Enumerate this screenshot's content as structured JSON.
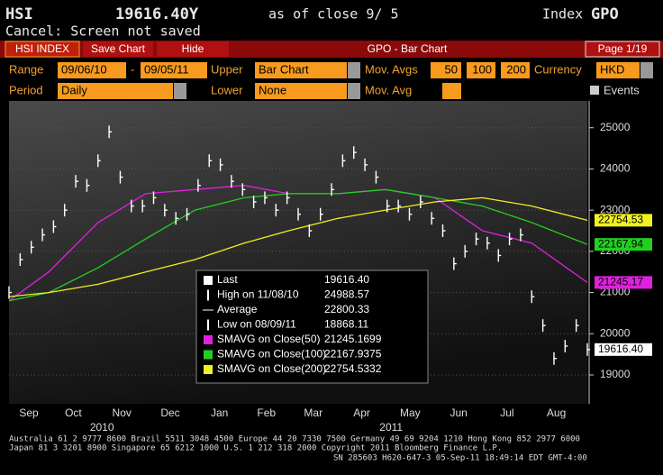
{
  "header": {
    "ticker": "HSI",
    "price": "19616.40Y",
    "as_of": "as of close  9/ 5",
    "index": "Index",
    "code": "GPO",
    "status": "Cancel: Screen not saved"
  },
  "toolbar": {
    "security": "HSI INDEX",
    "save": "Save Chart",
    "hide": "Hide",
    "title": "GPO - Bar Chart",
    "page": "Page 1/19"
  },
  "settings": {
    "range_label": "Range",
    "range_start": "09/06/10",
    "range_sep": "-",
    "range_end": "09/05/11",
    "upper_label": "Upper",
    "upper": "Bar Chart",
    "mavgs_label": "Mov. Avgs",
    "mavg_1": "50",
    "mavg_2": "100",
    "mavg_3": "200",
    "currency_label": "Currency",
    "currency": "HKD",
    "period_label": "Period",
    "period": "Daily",
    "lower_label": "Lower",
    "lower": "None",
    "mavg_label": "Mov. Avg",
    "events": "Events"
  },
  "chart_data": {
    "type": "bar",
    "x": [
      "2010-09-06",
      "2010-09-13",
      "2010-09-20",
      "2010-09-27",
      "2010-10-04",
      "2010-10-11",
      "2010-10-18",
      "2010-10-25",
      "2010-11-01",
      "2010-11-08",
      "2010-11-15",
      "2010-11-22",
      "2010-11-29",
      "2010-12-06",
      "2010-12-13",
      "2010-12-20",
      "2010-12-27",
      "2011-01-03",
      "2011-01-10",
      "2011-01-17",
      "2011-01-24",
      "2011-01-31",
      "2011-02-07",
      "2011-02-14",
      "2011-02-21",
      "2011-02-28",
      "2011-03-07",
      "2011-03-14",
      "2011-03-21",
      "2011-03-28",
      "2011-04-04",
      "2011-04-11",
      "2011-04-18",
      "2011-04-25",
      "2011-05-02",
      "2011-05-09",
      "2011-05-16",
      "2011-05-23",
      "2011-05-30",
      "2011-06-06",
      "2011-06-13",
      "2011-06-20",
      "2011-06-27",
      "2011-07-04",
      "2011-07-11",
      "2011-07-18",
      "2011-07-25",
      "2011-08-01",
      "2011-08-08",
      "2011-08-15",
      "2011-08-22",
      "2011-08-29",
      "2011-09-05"
    ],
    "series": [
      {
        "name": "HSI INDEX",
        "color": "#ffffff",
        "values": [
          21000,
          21800,
          22100,
          22400,
          22600,
          23000,
          23700,
          23600,
          24200,
          24900,
          23800,
          23100,
          23100,
          23300,
          23000,
          22800,
          22900,
          23600,
          24200,
          24100,
          23700,
          23500,
          23200,
          23300,
          23000,
          23300,
          22900,
          22500,
          22900,
          23500,
          24200,
          24400,
          24100,
          23800,
          23100,
          23100,
          22900,
          23200,
          22800,
          22500,
          21700,
          22000,
          22300,
          22200,
          21900,
          22300,
          22400,
          20900,
          20200,
          19400,
          19700,
          20200,
          19616.4
        ]
      }
    ],
    "moving_averages": [
      {
        "name": "SMAVG on Close(50)",
        "color": "#e020e0",
        "x": [
          "2010-09-06",
          "2010-10-01",
          "2010-11-01",
          "2010-12-01",
          "2011-01-01",
          "2011-02-01",
          "2011-03-01",
          "2011-04-01",
          "2011-05-01",
          "2011-06-01",
          "2011-07-01",
          "2011-08-01",
          "2011-09-05"
        ],
        "values": [
          20800,
          21500,
          22700,
          23400,
          23500,
          23600,
          23400,
          23400,
          23500,
          23300,
          22500,
          22200,
          21245.1699
        ],
        "legend_value": "21245.1699",
        "tag": {
          "value": 21245.1699,
          "label": "21245.17"
        }
      },
      {
        "name": "SMAVG on Close(100)",
        "color": "#20d020",
        "x": [
          "2010-09-06",
          "2010-10-01",
          "2010-11-01",
          "2010-12-01",
          "2011-01-01",
          "2011-02-01",
          "2011-03-01",
          "2011-04-01",
          "2011-05-01",
          "2011-06-01",
          "2011-07-01",
          "2011-08-01",
          "2011-09-05"
        ],
        "values": [
          20800,
          21000,
          21600,
          22300,
          23000,
          23300,
          23400,
          23400,
          23500,
          23300,
          23100,
          22700,
          22167.9375
        ],
        "legend_value": "22167.9375",
        "tag": {
          "value": 22167.9375,
          "label": "22167.94"
        }
      },
      {
        "name": "SMAVG on Close(200)",
        "color": "#f0f020",
        "x": [
          "2010-09-06",
          "2010-10-01",
          "2010-11-01",
          "2010-12-01",
          "2011-01-01",
          "2011-02-01",
          "2011-03-01",
          "2011-04-01",
          "2011-05-01",
          "2011-06-01",
          "2011-07-01",
          "2011-08-01",
          "2011-09-05"
        ],
        "values": [
          20900,
          21000,
          21200,
          21500,
          21800,
          22200,
          22500,
          22800,
          23000,
          23200,
          23300,
          23100,
          22754.5332
        ],
        "legend_value": "22754.5332",
        "tag": {
          "value": 22754.5332,
          "label": "22754.53"
        }
      }
    ],
    "last_tag": {
      "value": 19616.4,
      "label": "19616.40"
    },
    "stats": [
      {
        "label": "Last",
        "value": "19616.40"
      },
      {
        "label": "High on 11/08/10",
        "value": "24988.57"
      },
      {
        "label": "Average",
        "value": "22800.33"
      },
      {
        "label": "Low on 08/09/11",
        "value": "18868.11"
      }
    ],
    "xlim": [
      "2010-09-06",
      "2011-09-05"
    ],
    "xticks": [
      {
        "value": "2010-09",
        "label": "Sep"
      },
      {
        "value": "2010-10",
        "label": "Oct"
      },
      {
        "value": "2010-11",
        "label": "Nov"
      },
      {
        "value": "2010-12",
        "label": "Dec"
      },
      {
        "value": "2011-01",
        "label": "Jan"
      },
      {
        "value": "2011-02",
        "label": "Feb"
      },
      {
        "value": "2011-03",
        "label": "Mar"
      },
      {
        "value": "2011-04",
        "label": "Apr"
      },
      {
        "value": "2011-05",
        "label": "May"
      },
      {
        "value": "2011-06",
        "label": "Jun"
      },
      {
        "value": "2011-07",
        "label": "Jul"
      },
      {
        "value": "2011-08",
        "label": "Aug"
      }
    ],
    "year_labels": [
      2010,
      2011
    ],
    "ylim": [
      18300,
      25650
    ],
    "yticks": [
      19000,
      20000,
      21000,
      22000,
      23000,
      24000,
      25000
    ],
    "grid": true
  },
  "footer": [
    "Australia 61 2 9777 8600 Brazil 5511 3048 4500 Europe 44 20 7330 7500 Germany 49 69 9204 1210 Hong Kong 852 2977 6000",
    "Japan 81 3 3201 8900         Singapore 65 6212 1000         U.S. 1 212 318 2000         Copyright 2011 Bloomberg Finance L.P.",
    "SN 285603 H620-647-3 05-Sep-11 18:49:14 EDT  GMT-4:00"
  ]
}
